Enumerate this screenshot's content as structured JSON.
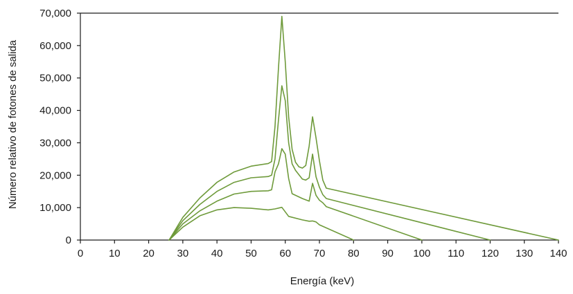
{
  "chart_data": {
    "type": "line",
    "xlabel": "Energía (keV)",
    "ylabel": "Número relativo de fotones de salida",
    "xlim": [
      0,
      140
    ],
    "ylim": [
      0,
      70000
    ],
    "x_ticks": [
      0,
      10,
      20,
      30,
      40,
      50,
      60,
      70,
      80,
      90,
      100,
      110,
      120,
      130,
      140
    ],
    "x_tick_labels": [
      "0",
      "10",
      "20",
      "30",
      "40",
      "50",
      "60",
      "70",
      "80",
      "90",
      "100",
      "110",
      "120",
      "130",
      "140"
    ],
    "y_ticks": [
      0,
      10000,
      20000,
      30000,
      40000,
      50000,
      60000,
      70000
    ],
    "y_tick_labels": [
      "0",
      "10,000",
      "20,000",
      "30,000",
      "40,000",
      "50,000",
      "60,000",
      "70,000"
    ],
    "grid": false,
    "color": "#6e9a3a",
    "series": [
      {
        "x": [
          26,
          30,
          35,
          40,
          45,
          50,
          55,
          57,
          59,
          61,
          65,
          67,
          68,
          69,
          70,
          80
        ],
        "y": [
          0,
          4000,
          7500,
          9300,
          10000,
          9800,
          9300,
          9600,
          10100,
          7300,
          6200,
          5800,
          5900,
          5600,
          4700,
          0
        ]
      },
      {
        "x": [
          26,
          30,
          35,
          40,
          45,
          50,
          55,
          56,
          57,
          58,
          59,
          60,
          61,
          62,
          65,
          67,
          68,
          69,
          70,
          71,
          72,
          100
        ],
        "y": [
          0,
          5000,
          9000,
          12000,
          14200,
          15000,
          15200,
          15500,
          21000,
          23500,
          28200,
          26500,
          19000,
          14300,
          12800,
          12000,
          17500,
          13800,
          12300,
          11500,
          10300,
          0
        ]
      },
      {
        "x": [
          26,
          30,
          35,
          40,
          45,
          50,
          55,
          56,
          57,
          58,
          59,
          60,
          61,
          62,
          63,
          65,
          66,
          67,
          68,
          69,
          70,
          71,
          72,
          120
        ],
        "y": [
          0,
          6000,
          11000,
          15000,
          17800,
          19200,
          19600,
          20000,
          25000,
          37000,
          47600,
          43000,
          30000,
          23500,
          21500,
          18800,
          18500,
          19200,
          26500,
          19500,
          16300,
          14000,
          12800,
          0
        ]
      },
      {
        "x": [
          26,
          30,
          35,
          40,
          45,
          50,
          55,
          56,
          57,
          58,
          59,
          60,
          61,
          62,
          63,
          64,
          65,
          66,
          67,
          68,
          69,
          70,
          71,
          72,
          140
        ],
        "y": [
          0,
          7000,
          13000,
          17800,
          21000,
          22800,
          23600,
          24200,
          35000,
          53000,
          69000,
          55000,
          38000,
          28000,
          24000,
          22600,
          22200,
          23000,
          29000,
          38000,
          31500,
          24500,
          18500,
          16000,
          0
        ]
      }
    ]
  }
}
